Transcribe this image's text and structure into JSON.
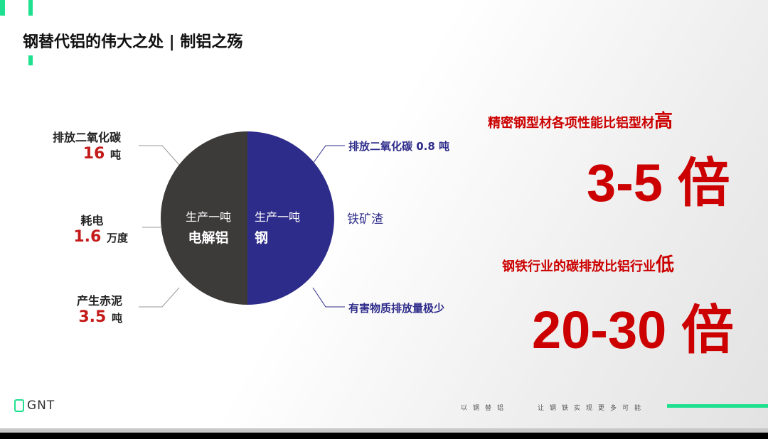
{
  "title": "钢替代铝的伟大之处 | 制铝之殇",
  "colors": {
    "accent": "#1fe08f",
    "aluminum": "#3d3a3a",
    "steel": "#2e2c8a",
    "highlight": "#c41a1a"
  },
  "circle": {
    "left_line1": "生产一吨",
    "left_line2": "电解铝",
    "right_line1": "生产一吨",
    "right_line2": "钢"
  },
  "aluminum": [
    {
      "label": "排放二氧化碳",
      "value": "16",
      "unit": "吨"
    },
    {
      "label": "耗电",
      "value": "1.6",
      "unit": "万度"
    },
    {
      "label": "产生赤泥",
      "value": "3.5",
      "unit": "吨"
    }
  ],
  "steel": [
    "排放二氧化碳 0.8 吨",
    "铁矿渣",
    "有害物质排放量极少"
  ],
  "stat1": {
    "caption": "精密钢型材各项性能比铝型材",
    "emph": "高",
    "value": "3-5 倍"
  },
  "stat2": {
    "caption": "钢铁行业的碳排放比铝行业",
    "emph": "低",
    "value": "20-30 倍"
  },
  "footer": {
    "logo": "GNT",
    "slogan1": "以钢替铝",
    "slogan2": "让钢铁实现更多可能"
  }
}
